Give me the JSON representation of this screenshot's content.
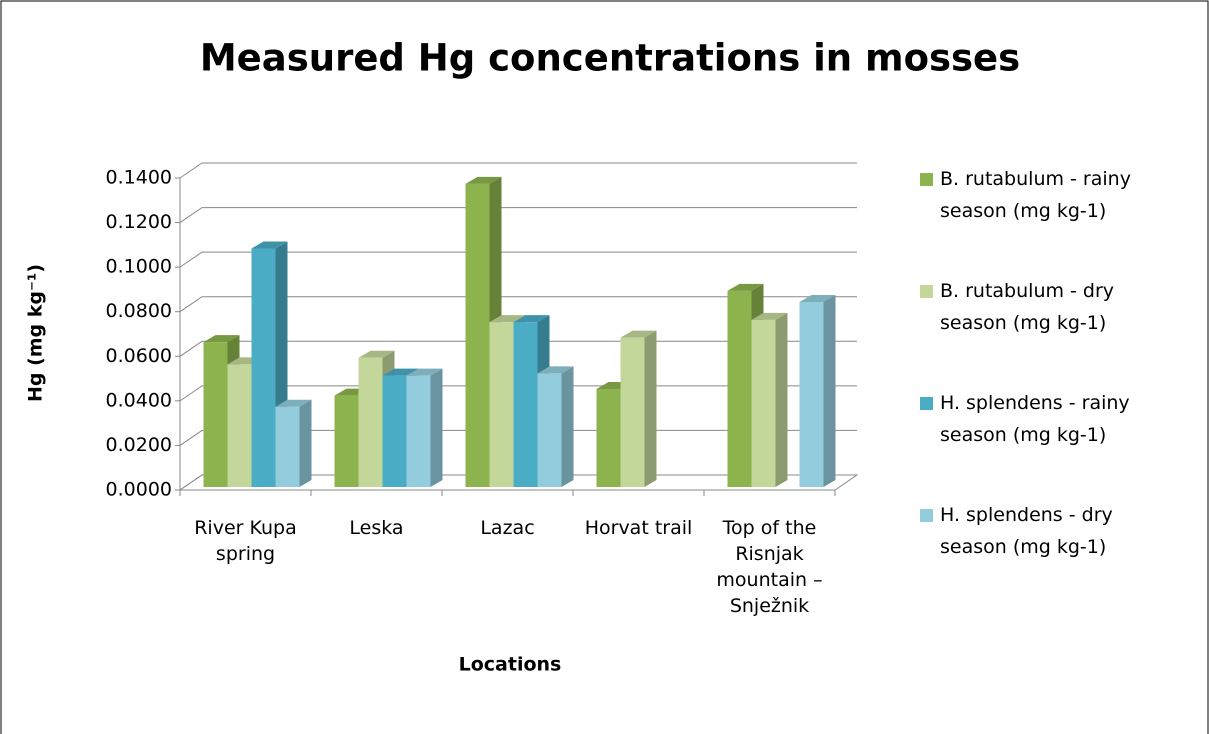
{
  "chart_data": {
    "type": "bar3d",
    "title": "Measured Hg concentrations in mosses",
    "x_label": "Locations",
    "y_label": "Hg (mg kg⁻¹)",
    "categories": [
      "River Kupa spring",
      "Leska",
      "Lazac",
      "Horvat trail",
      "Top of the Risnjak mountain – Snježnik"
    ],
    "series": [
      {
        "name": "B. rutabulum - rainy season (mg kg-1)",
        "color": "#8db34e",
        "values": [
          0.065,
          0.041,
          0.136,
          0.044,
          0.088
        ]
      },
      {
        "name": "B. rutabulum - dry season (mg kg-1)",
        "color": "#c4d79b",
        "values": [
          0.055,
          0.058,
          0.074,
          0.067,
          0.075
        ]
      },
      {
        "name": "H. splendens - rainy season (mg kg-1)",
        "color": "#4bacc6",
        "values": [
          0.107,
          0.05,
          0.074,
          null,
          null
        ]
      },
      {
        "name": "H. splendens - dry season (mg kg-1)",
        "color": "#93cddd",
        "values": [
          0.036,
          0.05,
          0.051,
          null,
          0.083
        ]
      }
    ],
    "ylim": [
      0,
      0.14
    ],
    "yticks": [
      {
        "value": 0,
        "label": "0.0000"
      },
      {
        "value": 0.02,
        "label": "0.0200"
      },
      {
        "value": 0.04,
        "label": "0.0400"
      },
      {
        "value": 0.06,
        "label": "0.0600"
      },
      {
        "value": 0.08,
        "label": "0.0800"
      },
      {
        "value": 0.1,
        "label": "0.1000"
      },
      {
        "value": 0.12,
        "label": "0.1200"
      },
      {
        "value": 0.14,
        "label": "0.1400"
      }
    ],
    "grid": true,
    "legend": "right"
  }
}
